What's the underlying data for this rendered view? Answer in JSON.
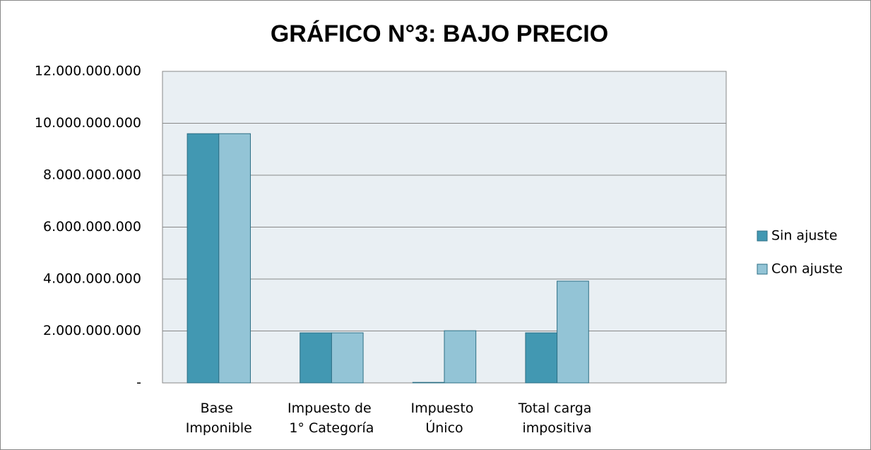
{
  "chart_data": {
    "type": "bar",
    "title": "GRÁFICO N°3: BAJO PRECIO",
    "categories": [
      "Base Imponible",
      "Impuesto de 1° Categoría",
      "Impuesto Único",
      "Total carga impositiva",
      null
    ],
    "series": [
      {
        "name": "Sin ajuste",
        "color": "#4298b2",
        "values": [
          9600000000,
          1930000000,
          20000000,
          1930000000,
          null
        ]
      },
      {
        "name": "Con ajuste",
        "color": "#93c4d6",
        "values": [
          9600000000,
          1930000000,
          2010000000,
          3920000000,
          null
        ]
      }
    ],
    "ylim": [
      0,
      12000000000
    ],
    "yticks": [
      {
        "value": 0,
        "label": "-"
      },
      {
        "value": 2000000000,
        "label": "2.000.000.000"
      },
      {
        "value": 4000000000,
        "label": "4.000.000.000"
      },
      {
        "value": 6000000000,
        "label": "6.000.000.000"
      },
      {
        "value": 8000000000,
        "label": "8.000.000.000"
      },
      {
        "value": 10000000000,
        "label": "10.000.000.000"
      },
      {
        "value": 12000000000,
        "label": "12.000.000.000"
      }
    ],
    "grid": true,
    "legend": "right"
  }
}
